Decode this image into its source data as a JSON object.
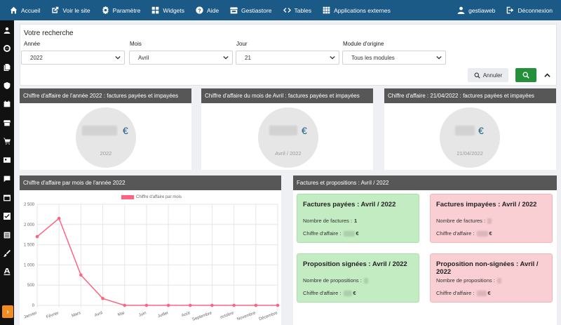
{
  "nav": {
    "items": [
      {
        "label": "Accueil",
        "icon": "home-icon"
      },
      {
        "label": "Voir le site",
        "icon": "external-link-icon"
      },
      {
        "label": "Paramètre",
        "icon": "gear-icon"
      },
      {
        "label": "Widgets",
        "icon": "widgets-icon"
      },
      {
        "label": "Aide",
        "icon": "help-icon"
      },
      {
        "label": "Gestiastore",
        "icon": "store-icon"
      },
      {
        "label": "Tables",
        "icon": "code-icon"
      },
      {
        "label": "Applications externes",
        "icon": "apps-grid-icon"
      }
    ],
    "user": "gestiaweb",
    "logout": "Déconnexion"
  },
  "search": {
    "title": "Votre recherche",
    "annee_label": "Année",
    "annee_value": "2022",
    "mois_label": "Mois",
    "mois_value": "Avril",
    "jour_label": "Jour",
    "jour_value": "21",
    "module_label": "Module d'origine",
    "module_value": "Tous les modules",
    "annuler_label": "Annuler"
  },
  "stats": {
    "year": {
      "title": "Chiffre d'affaire de l'année 2022 : factures payées et impayées",
      "currency": "€",
      "period": "2022"
    },
    "month": {
      "title": "Chiffre d'affaire du mois de Avril : factures payées et impayées",
      "currency": "€",
      "period": "Avril / 2022"
    },
    "day": {
      "title": "Chiffre d'affaire : 21/04/2022 : factures payées et impayées",
      "currency": "€",
      "period": "21/04/2022"
    }
  },
  "chart_panel": {
    "title": "Chiffre d'affaire par mois de l'année 2022"
  },
  "chart_data": {
    "type": "line",
    "categories": [
      "Janvier",
      "Février",
      "Mars",
      "Avril",
      "Mai",
      "Juin",
      "Juillet",
      "Août",
      "Septembre",
      "octobre",
      "Novembre",
      "Décembre"
    ],
    "series": [
      {
        "name": "Chiffre d'affaire par mois",
        "values": [
          1700,
          2150,
          750,
          170,
          0,
          0,
          0,
          0,
          0,
          0,
          0,
          0
        ],
        "color": "#ff6384"
      }
    ],
    "yticks": [
      "2 500",
      "2 000",
      "1 500",
      "1 000",
      "500",
      "0"
    ],
    "ylim": [
      0,
      2500
    ],
    "legend_position": "top"
  },
  "factures_panel": {
    "title": "Factures et propositions : Avril / 2022",
    "payees": {
      "title": "Factures payées : Avril / 2022",
      "count_label": "Nombre de factures :",
      "count_value": "1",
      "ca_label": "Chiffre d'affaire :",
      "currency": "€"
    },
    "impayees": {
      "title": "Factures impayées : Avril / 2022",
      "count_label": "Nombre de factures :",
      "ca_label": "Chiffre d'affaire :",
      "currency": "€"
    },
    "signees": {
      "title": "Proposition signées : Avril / 2022",
      "count_label": "Nombre de propositions :",
      "ca_label": "Chiffre d'affaire :",
      "currency": "€"
    },
    "non_signees": {
      "title": "Proposition non-signées : Avril / 2022",
      "count_label": "Nombre de propositions :",
      "ca_label": "Chiffre d'affaire :",
      "currency": "€"
    }
  }
}
